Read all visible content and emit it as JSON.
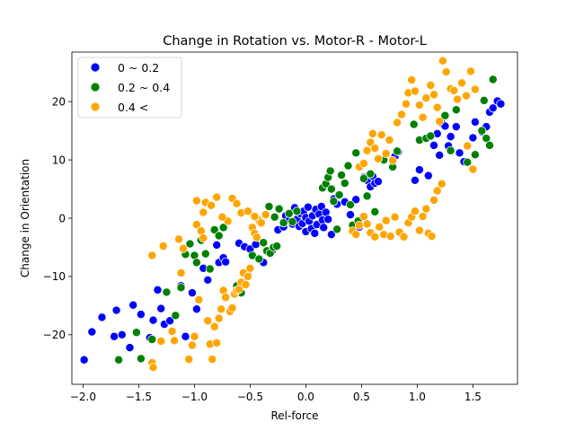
{
  "chart_data": {
    "type": "scatter",
    "title": "Change in Rotation vs. Motor-R - Motor-L",
    "xlabel": "Rel-force",
    "ylabel": "Change in Orientation",
    "xlim": [
      -2.1,
      1.9
    ],
    "ylim": [
      -28.5,
      28.5
    ],
    "xticks": [
      -2.0,
      -1.5,
      -1.0,
      -0.5,
      0.0,
      0.5,
      1.0,
      1.5
    ],
    "xtick_labels": [
      "−2.0",
      "−1.5",
      "−1.0",
      "−0.5",
      "0.0",
      "0.5",
      "1.0",
      "1.5"
    ],
    "yticks": [
      -20,
      -10,
      0,
      10,
      20
    ],
    "ytick_labels": [
      "−20",
      "−10",
      "0",
      "10",
      "20"
    ],
    "grid": false,
    "legend_position": "upper-left",
    "series": [
      {
        "name": "0 ~ 0.2",
        "color": "#0000ff",
        "points": [
          [
            -1.99,
            -24.3
          ],
          [
            -1.92,
            -19.5
          ],
          [
            -1.83,
            -17.0
          ],
          [
            -1.72,
            -20.3
          ],
          [
            -1.7,
            -15.8
          ],
          [
            -1.65,
            -20.0
          ],
          [
            -1.58,
            -22.2
          ],
          [
            -1.55,
            -14.9
          ],
          [
            -1.48,
            -16.5
          ],
          [
            -1.4,
            -20.5
          ],
          [
            -1.37,
            -17.5
          ],
          [
            -1.33,
            -12.3
          ],
          [
            -1.3,
            -15.5
          ],
          [
            -1.27,
            -18.2
          ],
          [
            -1.22,
            -17.6
          ],
          [
            -1.12,
            -11.6
          ],
          [
            -1.08,
            -20.3
          ],
          [
            -1.02,
            -12.8
          ],
          [
            -0.98,
            -15.6
          ],
          [
            -0.92,
            -8.6
          ],
          [
            -0.88,
            -10.6
          ],
          [
            -0.8,
            -4.6
          ],
          [
            -0.78,
            -7.6
          ],
          [
            -0.74,
            -6.8
          ],
          [
            -0.72,
            -7.5
          ],
          [
            -0.6,
            -4.3
          ],
          [
            -0.55,
            -4.9
          ],
          [
            -0.5,
            -5.3
          ],
          [
            -0.45,
            -4.5
          ],
          [
            -0.38,
            -7.6
          ],
          [
            -0.3,
            -5.5
          ],
          [
            -0.25,
            -2.0
          ],
          [
            -0.2,
            -1.5
          ],
          [
            -0.18,
            0.4
          ],
          [
            -0.15,
            -0.3
          ],
          [
            -0.12,
            -1.0
          ],
          [
            -0.1,
            1.8
          ],
          [
            -0.08,
            -0.2
          ],
          [
            -0.06,
            -1.4
          ],
          [
            -0.05,
            0.8
          ],
          [
            -0.03,
            -0.9
          ],
          [
            -0.02,
            1.2
          ],
          [
            0.0,
            -2.3
          ],
          [
            0.0,
            0.1
          ],
          [
            0.02,
            1.9
          ],
          [
            0.03,
            -0.5
          ],
          [
            0.05,
            -1.8
          ],
          [
            0.06,
            0.4
          ],
          [
            0.08,
            -2.6
          ],
          [
            0.09,
            1.5
          ],
          [
            0.1,
            -1.1
          ],
          [
            0.12,
            0.7
          ],
          [
            0.14,
            2.0
          ],
          [
            0.15,
            -0.3
          ],
          [
            0.16,
            -1.6
          ],
          [
            0.18,
            1.0
          ],
          [
            0.2,
            -0.2
          ],
          [
            0.23,
            -2.8
          ],
          [
            0.25,
            3.3
          ],
          [
            0.28,
            2.4
          ],
          [
            0.35,
            2.8
          ],
          [
            0.4,
            0.6
          ],
          [
            0.45,
            3.2
          ],
          [
            0.48,
            -1.5
          ],
          [
            0.52,
            7.0
          ],
          [
            0.55,
            6.5
          ],
          [
            0.58,
            5.4
          ],
          [
            0.6,
            7.2
          ],
          [
            0.62,
            6.0
          ],
          [
            0.65,
            6.3
          ],
          [
            0.8,
            10.6
          ],
          [
            0.83,
            11.4
          ],
          [
            0.98,
            6.5
          ],
          [
            1.02,
            8.3
          ],
          [
            1.1,
            7.3
          ],
          [
            1.15,
            12.5
          ],
          [
            1.18,
            14.5
          ],
          [
            1.2,
            10.8
          ],
          [
            1.22,
            16.3
          ],
          [
            1.25,
            15.8
          ],
          [
            1.28,
            12.4
          ],
          [
            1.3,
            14.0
          ],
          [
            1.35,
            15.7
          ],
          [
            1.38,
            11.2
          ],
          [
            1.42,
            9.7
          ],
          [
            1.5,
            13.8
          ],
          [
            1.52,
            16.5
          ],
          [
            1.58,
            14.8
          ],
          [
            1.62,
            15.7
          ],
          [
            1.65,
            18.2
          ],
          [
            1.68,
            18.9
          ],
          [
            1.72,
            20.1
          ],
          [
            1.75,
            19.6
          ]
        ]
      },
      {
        "name": "0.2 ~ 0.4",
        "color": "#008000",
        "points": [
          [
            -1.68,
            -24.3
          ],
          [
            -1.52,
            -19.6
          ],
          [
            -1.48,
            -24.1
          ],
          [
            -1.38,
            -20.8
          ],
          [
            -1.25,
            -12.7
          ],
          [
            -1.17,
            -16.7
          ],
          [
            -1.12,
            -11.9
          ],
          [
            -1.08,
            -6.2
          ],
          [
            -1.04,
            -4.4
          ],
          [
            -1.0,
            -6.4
          ],
          [
            -0.98,
            -7.6
          ],
          [
            -0.94,
            -3.8
          ],
          [
            -0.9,
            -6.1
          ],
          [
            -0.86,
            -8.7
          ],
          [
            -0.82,
            -2.0
          ],
          [
            -0.78,
            -3.0
          ],
          [
            -0.74,
            -1.6
          ],
          [
            -0.62,
            -11.6
          ],
          [
            -0.58,
            -12.8
          ],
          [
            -0.52,
            -9.7
          ],
          [
            -0.48,
            -6.4
          ],
          [
            -0.42,
            -7.0
          ],
          [
            -0.38,
            -4.2
          ],
          [
            -0.35,
            -5.6
          ],
          [
            -0.32,
            -6.0
          ],
          [
            -0.29,
            -5.0
          ],
          [
            -0.26,
            -4.8
          ],
          [
            -0.33,
            2.0
          ],
          [
            -0.28,
            0.2
          ],
          [
            -0.24,
            1.6
          ],
          [
            -0.2,
            -0.8
          ],
          [
            -0.15,
            0.8
          ],
          [
            -0.12,
            -0.6
          ],
          [
            -0.08,
            1.2
          ],
          [
            0.15,
            5.2
          ],
          [
            0.18,
            5.9
          ],
          [
            0.2,
            7.0
          ],
          [
            0.22,
            8.1
          ],
          [
            0.23,
            5.0
          ],
          [
            0.25,
            2.9
          ],
          [
            0.28,
            -1.9
          ],
          [
            0.3,
            4.0
          ],
          [
            0.32,
            7.4
          ],
          [
            0.35,
            6.0
          ],
          [
            0.38,
            9.0
          ],
          [
            0.4,
            2.3
          ],
          [
            0.42,
            -1.2
          ],
          [
            0.45,
            11.2
          ],
          [
            0.47,
            -0.5
          ],
          [
            0.52,
            6.8
          ],
          [
            0.55,
            3.8
          ],
          [
            0.58,
            7.6
          ],
          [
            0.62,
            1.1
          ],
          [
            0.7,
            10.0
          ],
          [
            0.78,
            8.8
          ],
          [
            0.82,
            11.5
          ],
          [
            0.97,
            16.1
          ],
          [
            1.02,
            13.4
          ],
          [
            1.08,
            13.7
          ],
          [
            1.12,
            14.1
          ],
          [
            1.25,
            17.6
          ],
          [
            1.3,
            11.6
          ],
          [
            1.35,
            18.6
          ],
          [
            1.45,
            9.6
          ],
          [
            1.52,
            10.9
          ],
          [
            1.58,
            15.0
          ],
          [
            1.6,
            20.2
          ],
          [
            1.62,
            13.7
          ],
          [
            1.65,
            12.5
          ],
          [
            1.68,
            23.8
          ]
        ]
      },
      {
        "name": "0.4 <",
        "color": "#ffa500",
        "points": [
          [
            -1.38,
            -24.8
          ],
          [
            -1.37,
            -25.6
          ],
          [
            -1.38,
            -6.4
          ],
          [
            -1.3,
            -21.1
          ],
          [
            -1.28,
            -4.8
          ],
          [
            -1.2,
            -19.4
          ],
          [
            -1.18,
            -21.0
          ],
          [
            -1.14,
            -3.6
          ],
          [
            -1.12,
            -9.4
          ],
          [
            -1.1,
            -5.2
          ],
          [
            -1.05,
            -24.2
          ],
          [
            -1.02,
            -21.8
          ],
          [
            -1.0,
            -20.3
          ],
          [
            -0.98,
            -1.1
          ],
          [
            -0.96,
            -14.0
          ],
          [
            -0.94,
            -2.2
          ],
          [
            -0.92,
            -3.4
          ],
          [
            -0.9,
            2.7
          ],
          [
            -0.88,
            -17.6
          ],
          [
            -0.86,
            -21.6
          ],
          [
            -0.84,
            -24.2
          ],
          [
            -0.82,
            -18.6
          ],
          [
            -0.8,
            -21.4
          ],
          [
            -0.78,
            -17.2
          ],
          [
            -0.76,
            -15.6
          ],
          [
            -0.74,
            -12.4
          ],
          [
            -0.72,
            -13.6
          ],
          [
            -0.7,
            -0.5
          ],
          [
            -0.68,
            -16.0
          ],
          [
            -0.66,
            -15.4
          ],
          [
            -0.64,
            -13.0
          ],
          [
            -0.62,
            -12.4
          ],
          [
            -0.6,
            -12.2
          ],
          [
            -0.58,
            -11.0
          ],
          [
            -0.56,
            -9.4
          ],
          [
            -0.54,
            -11.4
          ],
          [
            -0.52,
            -10.0
          ],
          [
            -0.5,
            -8.6
          ],
          [
            -0.48,
            -1.6
          ],
          [
            -0.46,
            -2.6
          ],
          [
            -0.44,
            -3.3
          ],
          [
            -0.42,
            -0.4
          ],
          [
            -0.98,
            3.0
          ],
          [
            -0.92,
            1.0
          ],
          [
            -0.85,
            2.2
          ],
          [
            -0.8,
            3.6
          ],
          [
            -0.75,
            0.2
          ],
          [
            -0.66,
            3.4
          ],
          [
            -0.62,
            2.5
          ],
          [
            -0.58,
            0.9
          ],
          [
            -0.52,
            1.2
          ],
          [
            -0.46,
            0.3
          ],
          [
            -0.4,
            -0.8
          ],
          [
            -0.36,
            0.6
          ],
          [
            0.42,
            -2.2
          ],
          [
            0.45,
            -2.8
          ],
          [
            0.48,
            -1.2
          ],
          [
            0.52,
            0.3
          ],
          [
            0.55,
            -1.0
          ],
          [
            0.58,
            -2.5
          ],
          [
            0.62,
            -3.2
          ],
          [
            0.66,
            -1.5
          ],
          [
            0.7,
            -2.8
          ],
          [
            0.72,
            -0.4
          ],
          [
            0.76,
            -3.1
          ],
          [
            0.8,
            0.2
          ],
          [
            0.84,
            -2.4
          ],
          [
            0.88,
            -3.2
          ],
          [
            0.92,
            -0.8
          ],
          [
            0.95,
            0.2
          ],
          [
            0.98,
            1.2
          ],
          [
            1.02,
            -2.1
          ],
          [
            1.05,
            0.3
          ],
          [
            1.08,
            1.6
          ],
          [
            1.1,
            -2.6
          ],
          [
            1.13,
            -3.1
          ],
          [
            1.15,
            3.1
          ],
          [
            1.18,
            4.7
          ],
          [
            1.22,
            5.9
          ],
          [
            0.48,
            8.8
          ],
          [
            0.52,
            9.4
          ],
          [
            0.55,
            11.6
          ],
          [
            0.58,
            13.0
          ],
          [
            0.6,
            14.5
          ],
          [
            0.62,
            12.0
          ],
          [
            0.65,
            10.2
          ],
          [
            0.68,
            14.3
          ],
          [
            0.72,
            11.1
          ],
          [
            0.75,
            13.4
          ],
          [
            0.78,
            9.9
          ],
          [
            0.82,
            16.4
          ],
          [
            0.86,
            17.8
          ],
          [
            0.9,
            19.6
          ],
          [
            0.92,
            21.5
          ],
          [
            0.95,
            23.7
          ],
          [
            0.98,
            21.8
          ],
          [
            1.02,
            19.4
          ],
          [
            1.05,
            17.3
          ],
          [
            1.08,
            20.6
          ],
          [
            1.12,
            22.8
          ],
          [
            1.15,
            21.2
          ],
          [
            1.18,
            19.0
          ],
          [
            1.2,
            16.6
          ],
          [
            1.23,
            27.0
          ],
          [
            1.26,
            25.1
          ],
          [
            1.3,
            22.2
          ],
          [
            1.33,
            21.9
          ],
          [
            1.36,
            20.4
          ],
          [
            1.4,
            23.2
          ],
          [
            1.44,
            21.0
          ],
          [
            1.48,
            25.2
          ],
          [
            1.5,
            8.4
          ],
          [
            1.52,
            22.1
          ],
          [
            1.45,
            12.4
          ]
        ]
      }
    ]
  }
}
